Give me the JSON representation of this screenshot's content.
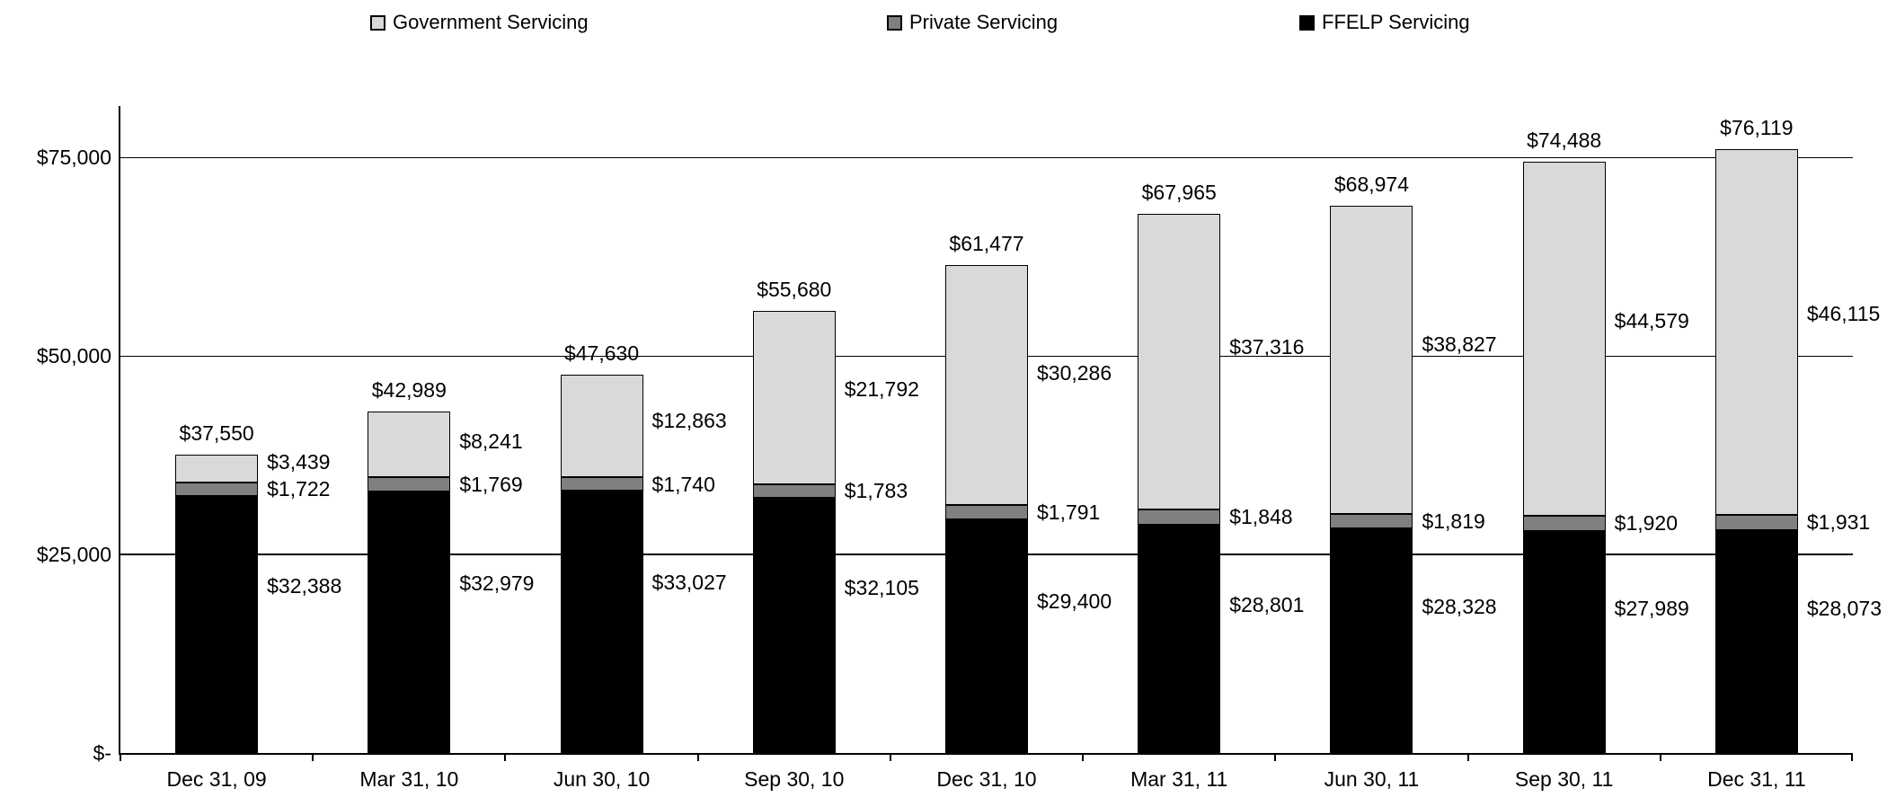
{
  "legend": [
    {
      "label": "Government Servicing",
      "color": "#d9d9d9"
    },
    {
      "label": "Private Servicing",
      "color": "#808080"
    },
    {
      "label": "FFELP Servicing",
      "color": "#000000"
    }
  ],
  "chart_data": {
    "type": "bar",
    "stacked": true,
    "title": "",
    "xlabel": "",
    "ylabel": "",
    "value_prefix": "$",
    "grid": true,
    "legend_position": "top",
    "categories": [
      "Dec 31, 09",
      "Mar 31, 10",
      "Jun 30, 10",
      "Sep 30, 10",
      "Dec 31, 10",
      "Mar 31, 11",
      "Jun 30, 11",
      "Sep 30, 11",
      "Dec 31, 11"
    ],
    "series": [
      {
        "name": "FFELP Servicing",
        "color": "#000000",
        "values": [
          32388,
          32979,
          33027,
          32105,
          29400,
          28801,
          28328,
          27989,
          28073
        ]
      },
      {
        "name": "Private Servicing",
        "color": "#808080",
        "values": [
          1722,
          1769,
          1740,
          1783,
          1791,
          1848,
          1819,
          1920,
          1931
        ]
      },
      {
        "name": "Government Servicing",
        "color": "#d9d9d9",
        "values": [
          3439,
          8241,
          12863,
          21792,
          30286,
          37316,
          38827,
          44579,
          46115
        ]
      }
    ],
    "totals": [
      37550,
      42989,
      47630,
      55680,
      61477,
      67965,
      68974,
      74488,
      76119
    ],
    "y_axis": {
      "max": 81500,
      "ticks": [
        {
          "value": 0,
          "label": "$-"
        },
        {
          "value": 25000,
          "label": "$25,000"
        },
        {
          "value": 50000,
          "label": "$50,000"
        },
        {
          "value": 75000,
          "label": "$75,000"
        }
      ]
    }
  }
}
